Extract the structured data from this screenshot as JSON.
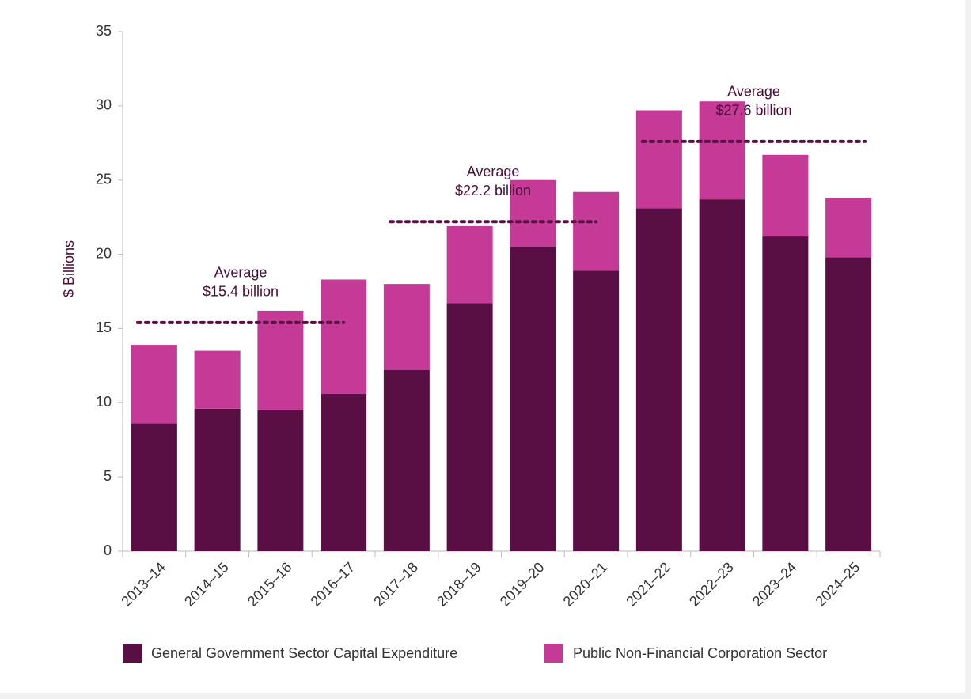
{
  "chart_data": {
    "type": "stacked_bar",
    "categories": [
      "2013–14",
      "2014–15",
      "2015–16",
      "2016–17",
      "2017–18",
      "2018–19",
      "2019–20",
      "2020–21",
      "2021–22",
      "2022–23",
      "2023–24",
      "2024–25"
    ],
    "series": [
      {
        "name": "General Government Sector Capital Expenditure",
        "color": "#5a0f44",
        "values": [
          8.6,
          9.6,
          9.5,
          10.6,
          12.2,
          16.7,
          20.5,
          18.9,
          23.1,
          23.7,
          21.2,
          19.8
        ]
      },
      {
        "name": "Public Non-Financial Corporation Sector",
        "color": "#c43a96",
        "values": [
          5.3,
          3.9,
          6.7,
          7.7,
          5.8,
          5.2,
          4.5,
          5.3,
          6.6,
          6.6,
          5.5,
          4.0
        ]
      }
    ],
    "y_label": "$ Billions",
    "ylim": [
      0,
      35
    ],
    "yticks": [
      0,
      5,
      10,
      15,
      20,
      25,
      30,
      35
    ],
    "averages": [
      {
        "lines": [
          "Average",
          "$15.4 billion"
        ],
        "value": 15.4,
        "start": "2013–14",
        "end": "2016–17"
      },
      {
        "lines": [
          "Average",
          "$22.2 billion"
        ],
        "value": 22.2,
        "start": "2017–18",
        "end": "2020–21"
      },
      {
        "lines": [
          "Average",
          "$27.6 billion"
        ],
        "value": 27.6,
        "start": "2021–22",
        "end": "2024–25"
      }
    ],
    "legend": "bottom"
  }
}
